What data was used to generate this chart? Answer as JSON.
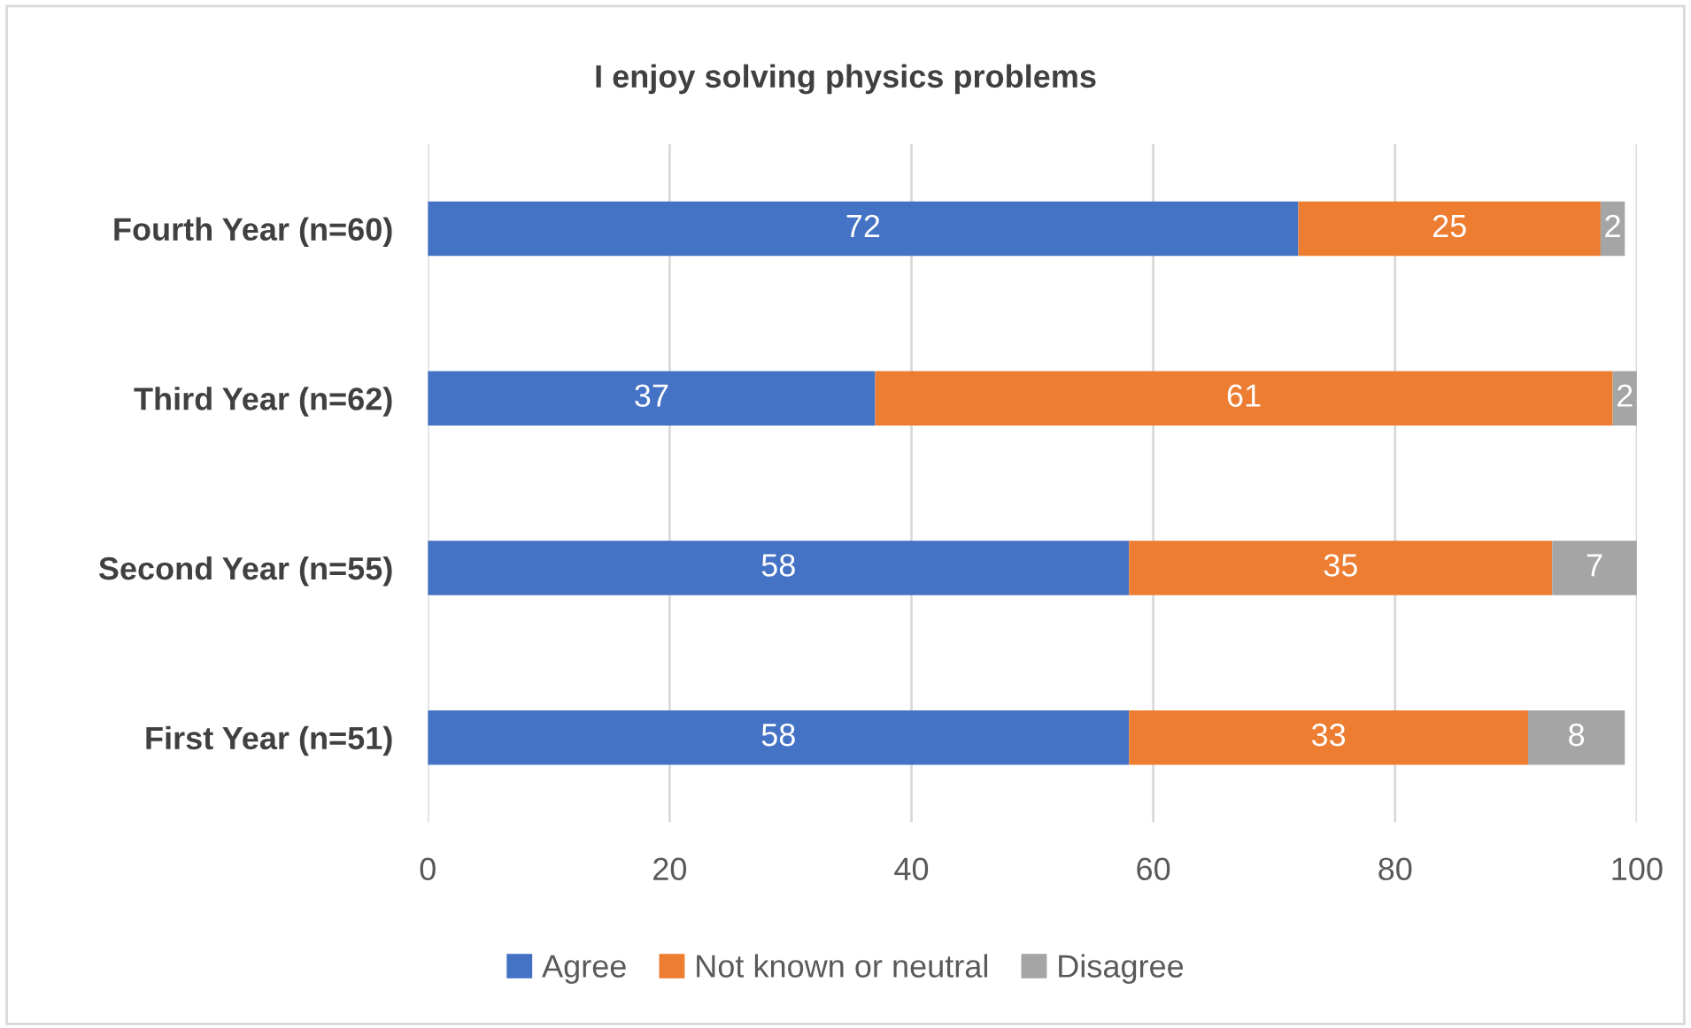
{
  "chart_data": {
    "type": "bar",
    "orientation": "horizontal",
    "stacked": true,
    "title": "I enjoy solving physics problems",
    "categories": [
      "Fourth Year (n=60)",
      "Third Year (n=62)",
      "Second Year (n=55)",
      "First Year (n=51)"
    ],
    "series": [
      {
        "name": "Agree",
        "color": "#4472c4",
        "values": [
          72,
          37,
          58,
          58
        ]
      },
      {
        "name": "Not known or neutral",
        "color": "#ed7d31",
        "values": [
          25,
          61,
          35,
          33
        ]
      },
      {
        "name": "Disagree",
        "color": "#a5a5a5",
        "values": [
          2,
          2,
          7,
          8
        ]
      }
    ],
    "xlim": [
      0,
      100
    ],
    "xticks": [
      0,
      20,
      40,
      60,
      80,
      100
    ],
    "grid": "x",
    "legend": "bottom",
    "data_labels": true
  }
}
